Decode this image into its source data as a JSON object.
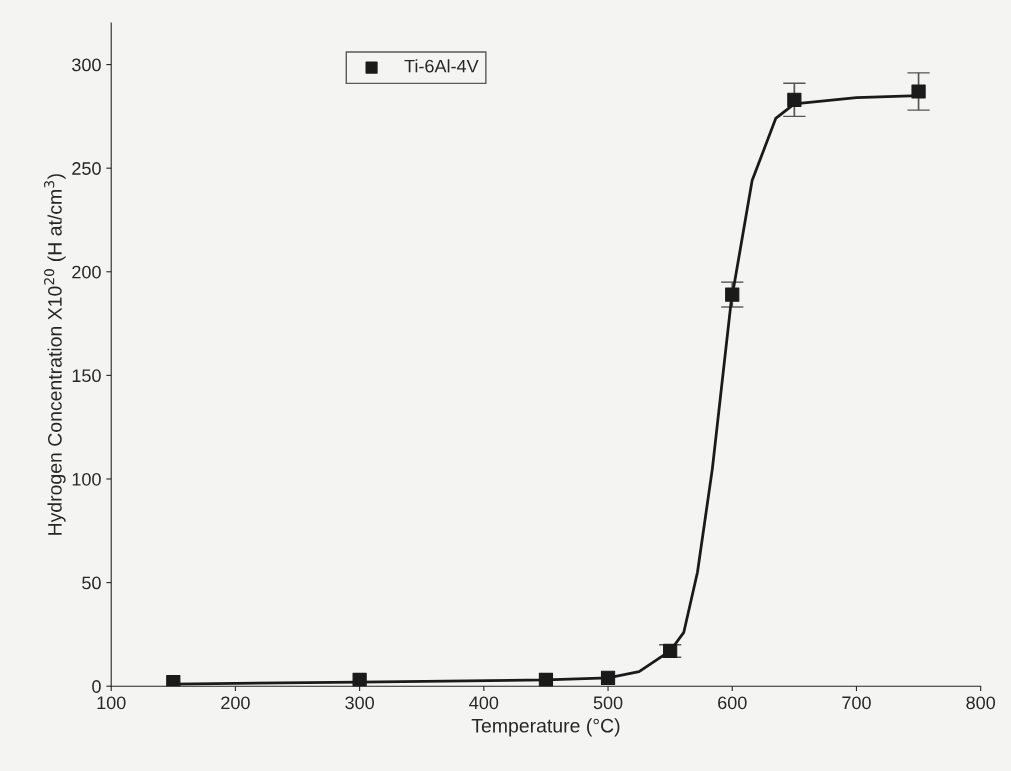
{
  "chart_data": {
    "type": "scatter",
    "xlabel": "Temperature (°C)",
    "ylabel": "Hydrogen Concentration X10$^{20}$ (H at/cm$^{3}$)",
    "xlim": [
      100,
      800
    ],
    "xticks": [
      100,
      200,
      300,
      400,
      500,
      600,
      700,
      800
    ],
    "ylim": [
      0,
      320
    ],
    "yticks": [
      0,
      50,
      100,
      150,
      200,
      250,
      300
    ],
    "grid": false,
    "legend": "top left",
    "series": [
      {
        "name": "Ti-6Al-4V",
        "marker": "square",
        "color": "#1a1a1a",
        "x": [
          150,
          300,
          450,
          500,
          550,
          600,
          650,
          750
        ],
        "values": [
          2,
          3,
          3,
          4,
          17,
          189,
          283,
          287
        ],
        "errors": [
          null,
          null,
          null,
          null,
          3,
          6,
          8,
          9
        ]
      },
      {
        "type": "line",
        "color": "#1a1a1a",
        "x": [
          150,
          300,
          450,
          500,
          525,
          550,
          561,
          572,
          584,
          599,
          616,
          635,
          650,
          700,
          750
        ],
        "values": [
          1,
          2,
          3,
          4,
          7,
          17,
          26,
          55,
          105,
          185,
          244,
          274,
          281,
          284,
          285
        ]
      }
    ]
  }
}
